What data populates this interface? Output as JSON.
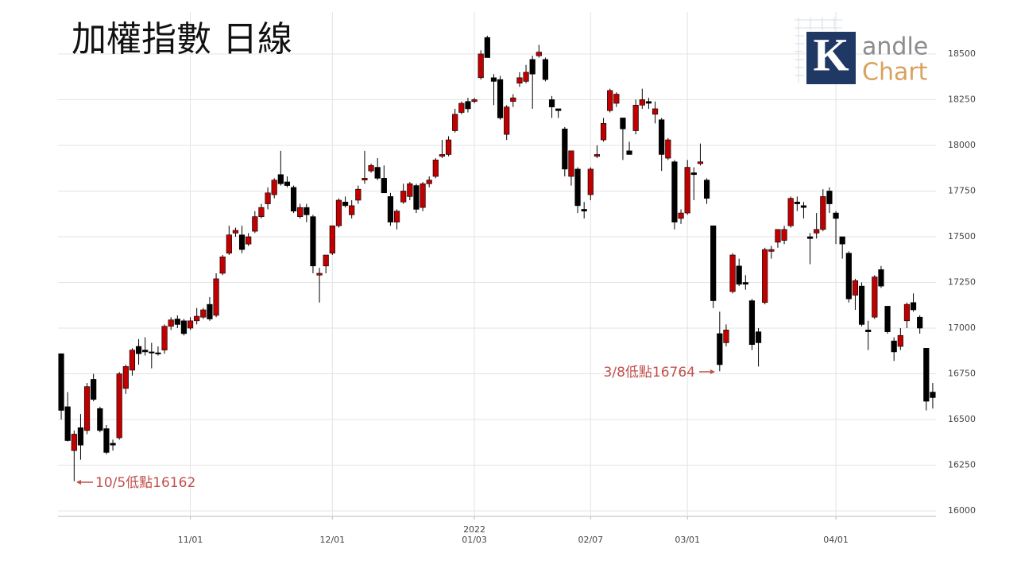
{
  "chart_data": {
    "type": "candlestick",
    "title": "加權指數 日線",
    "logo": {
      "letter": "K",
      "line1": "andle",
      "line2": "Chart"
    },
    "annotations": [
      "10/5低點16162",
      "3/8低點16764"
    ],
    "up_color": "#c00000",
    "down_color": "#000000",
    "ylim": [
      15970,
      18730
    ],
    "yticks": [
      16000,
      16250,
      16500,
      16750,
      17000,
      17250,
      17500,
      17750,
      18000,
      18250,
      18500
    ],
    "grid": true,
    "categories": [
      null,
      null,
      null,
      null,
      null,
      null,
      null,
      null,
      null,
      null,
      null,
      null,
      null,
      null,
      null,
      null,
      null,
      null,
      null,
      null,
      "11/01",
      null,
      null,
      null,
      null,
      null,
      null,
      null,
      null,
      null,
      null,
      null,
      null,
      null,
      null,
      null,
      null,
      null,
      null,
      null,
      null,
      null,
      "12/01",
      null,
      null,
      null,
      null,
      null,
      null,
      null,
      null,
      null,
      null,
      null,
      null,
      null,
      null,
      null,
      null,
      null,
      null,
      null,
      null,
      null,
      "2022\n01/03",
      null,
      null,
      null,
      null,
      null,
      null,
      null,
      null,
      null,
      null,
      null,
      null,
      null,
      null,
      null,
      null,
      null,
      "02/07",
      null,
      null,
      null,
      null,
      null,
      null,
      null,
      null,
      null,
      null,
      null,
      null,
      null,
      null,
      "03/01",
      null,
      null,
      null,
      null,
      null,
      null,
      null,
      null,
      null,
      null,
      null,
      null,
      null,
      null,
      null,
      null,
      null,
      null,
      null,
      null,
      null,
      null,
      "04/01",
      null,
      null,
      null,
      null,
      null,
      null,
      null,
      null,
      null,
      null,
      null,
      null,
      null,
      null,
      null
    ],
    "open": [
      16860,
      16570,
      16330,
      16455,
      16440,
      16720,
      16560,
      16450,
      16370,
      16400,
      16670,
      16770,
      16900,
      16880,
      16870,
      16865,
      16880,
      17010,
      17050,
      17040,
      17000,
      17040,
      17060,
      17130,
      17070,
      17300,
      17410,
      17520,
      17510,
      17460,
      17530,
      17610,
      17680,
      17730,
      17840,
      17800,
      17770,
      17610,
      17660,
      17610,
      17290,
      17340,
      17410,
      17560,
      17690,
      17620,
      17700,
      17810,
      17860,
      17880,
      17820,
      17720,
      17580,
      17690,
      17720,
      17780,
      17660,
      17790,
      17830,
      17940,
      17950,
      18080,
      18180,
      18240,
      18240,
      18370,
      18590,
      18370,
      18360,
      18060,
      18240,
      18340,
      18350,
      18470,
      18490,
      18470,
      18250,
      18200,
      18090,
      17830,
      17870,
      17650,
      17730,
      17940,
      18030,
      18190,
      18230,
      18150,
      17970,
      18080,
      18220,
      18240,
      18170,
      18140,
      17930,
      17910,
      17600,
      17630,
      17850,
      17900,
      17810,
      17560,
      16970,
      16920,
      17200,
      17340,
      17250,
      17150,
      16980,
      17140,
      17420,
      17470,
      17480,
      17560,
      17690,
      17670,
      17500,
      17520,
      17540,
      17750,
      17630,
      17500,
      17410,
      17180,
      17230,
      16990,
      17060,
      17320,
      17120,
      16930,
      16900,
      17040,
      17140,
      17060,
      16890,
      16650
    ],
    "high": [
      16860,
      16650,
      16440,
      16530,
      16700,
      16750,
      16570,
      16470,
      16390,
      16760,
      16800,
      16890,
      16940,
      16950,
      16920,
      16900,
      17020,
      17060,
      17070,
      17050,
      17060,
      17110,
      17110,
      17170,
      17300,
      17400,
      17560,
      17550,
      17560,
      17520,
      17640,
      17680,
      17770,
      17820,
      17970,
      17830,
      17780,
      17680,
      17680,
      17620,
      17330,
      17400,
      17560,
      17710,
      17720,
      17700,
      17780,
      17970,
      17900,
      17930,
      17890,
      17740,
      17650,
      17790,
      17800,
      17790,
      17800,
      17830,
      17930,
      18030,
      18050,
      18200,
      18240,
      18260,
      18260,
      18520,
      18600,
      18390,
      18380,
      18220,
      18280,
      18400,
      18440,
      18490,
      18550,
      18480,
      18270,
      18200,
      18100,
      17970,
      17880,
      17690,
      17880,
      18000,
      18150,
      18310,
      18290,
      18150,
      18020,
      18250,
      18310,
      18260,
      18240,
      18150,
      18040,
      17920,
      17650,
      17920,
      17880,
      18010,
      17820,
      17560,
      17090,
      17020,
      17410,
      17380,
      17290,
      17160,
      17000,
      17440,
      17450,
      17530,
      17560,
      17720,
      17720,
      17690,
      17520,
      17630,
      17760,
      17770,
      17640,
      17500,
      17420,
      17270,
      17250,
      17040,
      17290,
      17340,
      17120,
      16950,
      17000,
      17140,
      17190,
      17070,
      16890,
      16700
    ],
    "low": [
      16500,
      16380,
      16162,
      16280,
      16420,
      16600,
      16430,
      16310,
      16330,
      16390,
      16640,
      16740,
      16800,
      16850,
      16780,
      16850,
      16860,
      16990,
      17000,
      16960,
      16990,
      17020,
      17050,
      17040,
      17060,
      17290,
      17400,
      17500,
      17410,
      17450,
      17520,
      17600,
      17650,
      17710,
      17780,
      17770,
      17630,
      17600,
      17580,
      17300,
      17140,
      17300,
      17400,
      17550,
      17660,
      17600,
      17680,
      17790,
      17850,
      17810,
      17740,
      17560,
      17540,
      17680,
      17700,
      17630,
      17640,
      17770,
      17820,
      17930,
      17940,
      18070,
      18170,
      18180,
      18230,
      18360,
      18480,
      18220,
      18140,
      18030,
      18210,
      18320,
      18340,
      18200,
      18480,
      18350,
      18150,
      18150,
      17830,
      17780,
      17630,
      17600,
      17700,
      17930,
      18020,
      18180,
      18210,
      17920,
      17950,
      18060,
      18200,
      18200,
      18120,
      17860,
      17920,
      17540,
      17570,
      17620,
      17700,
      17890,
      17680,
      17110,
      16764,
      16900,
      17190,
      17230,
      17210,
      16880,
      16790,
      17130,
      17380,
      17440,
      17460,
      17550,
      17640,
      17600,
      17350,
      17490,
      17530,
      17630,
      17460,
      17380,
      17140,
      17100,
      17010,
      16880,
      17050,
      17220,
      16970,
      16820,
      16880,
      17000,
      17090,
      16970,
      16550,
      16560
    ],
    "close": [
      16550,
      16385,
      16420,
      16360,
      16680,
      16610,
      16440,
      16320,
      16360,
      16750,
      16790,
      16880,
      16860,
      16870,
      16865,
      16860,
      17010,
      17045,
      17020,
      16970,
      17040,
      17065,
      17100,
      17050,
      17270,
      17390,
      17510,
      17535,
      17430,
      17500,
      17610,
      17660,
      17740,
      17810,
      17790,
      17780,
      17640,
      17660,
      17620,
      17340,
      17300,
      17400,
      17560,
      17700,
      17670,
      17670,
      17760,
      17820,
      17890,
      17820,
      17740,
      17580,
      17640,
      17750,
      17790,
      17650,
      17790,
      17810,
      17920,
      17950,
      18030,
      18170,
      18230,
      18200,
      18250,
      18500,
      18480,
      18350,
      18150,
      18210,
      18260,
      18370,
      18400,
      18390,
      18510,
      18360,
      18210,
      18190,
      17870,
      17970,
      17670,
      17640,
      17870,
      17950,
      18120,
      18300,
      18280,
      18090,
      17950,
      18220,
      18250,
      18230,
      18200,
      17950,
      18030,
      17580,
      17630,
      17880,
      17840,
      17910,
      17710,
      17150,
      16800,
      16990,
      17400,
      17240,
      17240,
      16910,
      16920,
      17430,
      17430,
      17540,
      17540,
      17710,
      17680,
      17660,
      17490,
      17540,
      17720,
      17680,
      17600,
      17460,
      17160,
      17260,
      17020,
      16980,
      17280,
      17230,
      16980,
      16870,
      16960,
      17130,
      17100,
      17000,
      16600,
      16620
    ]
  }
}
